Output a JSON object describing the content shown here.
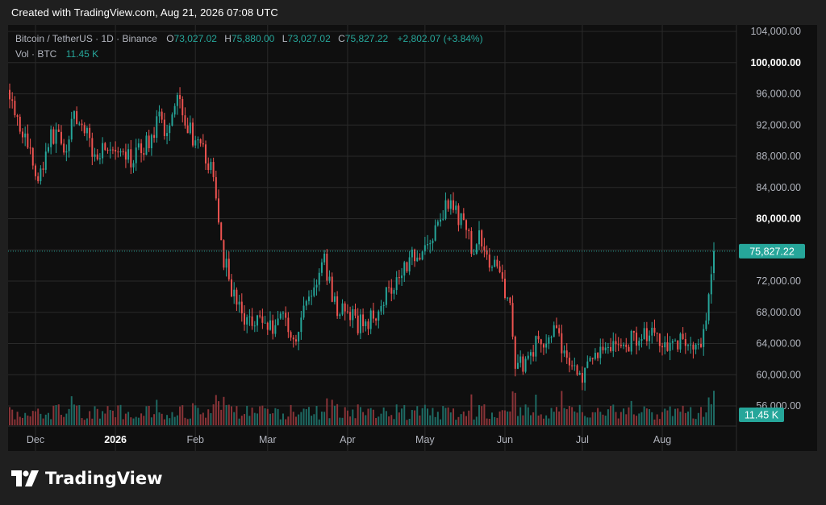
{
  "header": {
    "text": "Created with TradingView.com, Aug 21, 2026 07:08 UTC"
  },
  "legend": {
    "symbol": "Bitcoin / TetherUS · 1D · Binance",
    "o_label": "O",
    "o_value": "73,027.02",
    "h_label": "H",
    "h_value": "75,880.00",
    "l_label": "L",
    "l_value": "73,027.02",
    "c_label": "C",
    "c_value": "75,827.22",
    "change": "+2,802.07 (+3.84%)",
    "vol_label": "Vol · BTC",
    "vol_value": "11.45 K"
  },
  "footer": {
    "brand": "TradingView"
  },
  "colors": {
    "up": "#26a69a",
    "down": "#ef5350",
    "up_volume": "#1e6b64",
    "down_volume": "#8a3438",
    "grid": "#2a2a2a",
    "background": "#0f0f0f",
    "price_label_bg": "#26a69a"
  },
  "chart_data": {
    "type": "candlestick",
    "symbol": "Bitcoin / TetherUS",
    "interval": "1D",
    "exchange": "Binance",
    "ylim": [
      56000,
      104000
    ],
    "y_ticks": [
      "104,000.00",
      "100,000.00",
      "96,000.00",
      "92,000.00",
      "88,000.00",
      "84,000.00",
      "80,000.00",
      "76,000.00",
      "72,000.00",
      "68,000.00",
      "64,000.00",
      "60,000.00",
      "56,000.00"
    ],
    "y_tick_values": [
      104000,
      100000,
      96000,
      92000,
      88000,
      84000,
      80000,
      76000,
      72000,
      68000,
      64000,
      60000,
      56000
    ],
    "y_tick_emphasis": [
      false,
      true,
      false,
      false,
      false,
      false,
      true,
      false,
      false,
      false,
      false,
      false,
      false
    ],
    "x_tick_labels": [
      "Dec",
      "2026",
      "Feb",
      "Mar",
      "Apr",
      "May",
      "Jun",
      "Jul",
      "Aug"
    ],
    "x_tick_dates": [
      "2025-12-01",
      "2026-01-01",
      "2026-02-01",
      "2026-03-01",
      "2026-04-01",
      "2026-05-01",
      "2026-06-01",
      "2026-07-01",
      "2026-08-01"
    ],
    "x_tick_emphasis": [
      false,
      true,
      false,
      false,
      false,
      false,
      false,
      false,
      false
    ],
    "date_range": [
      "2025-11-21",
      "2026-08-21"
    ],
    "last_price": 75827.22,
    "last_price_label": "75,827.22",
    "volume_label": "11.45 K",
    "close_path": [
      [
        "2025-11-21",
        96500
      ],
      [
        "2025-11-25",
        92000
      ],
      [
        "2025-11-29",
        88500
      ],
      [
        "2025-12-02",
        84500
      ],
      [
        "2025-12-06",
        90000
      ],
      [
        "2025-12-10",
        91000
      ],
      [
        "2025-12-13",
        88500
      ],
      [
        "2025-12-16",
        93000
      ],
      [
        "2025-12-20",
        91500
      ],
      [
        "2025-12-24",
        88000
      ],
      [
        "2025-12-28",
        89500
      ],
      [
        "2026-01-02",
        87500
      ],
      [
        "2026-01-08",
        87800
      ],
      [
        "2026-01-14",
        90000
      ],
      [
        "2026-01-18",
        92500
      ],
      [
        "2026-01-21",
        91000
      ],
      [
        "2026-01-25",
        96500
      ],
      [
        "2026-01-29",
        92000
      ],
      [
        "2026-02-02",
        89000
      ],
      [
        "2026-02-05",
        88000
      ],
      [
        "2026-02-08",
        85000
      ],
      [
        "2026-02-12",
        75000
      ],
      [
        "2026-02-16",
        70000
      ],
      [
        "2026-02-20",
        67000
      ],
      [
        "2026-02-25",
        67500
      ],
      [
        "2026-03-02",
        66000
      ],
      [
        "2026-03-07",
        68000
      ],
      [
        "2026-03-12",
        64000
      ],
      [
        "2026-03-16",
        70000
      ],
      [
        "2026-03-19",
        71000
      ],
      [
        "2026-03-23",
        74500
      ],
      [
        "2026-03-27",
        69000
      ],
      [
        "2026-03-31",
        68000
      ],
      [
        "2026-04-05",
        66500
      ],
      [
        "2026-04-10",
        67000
      ],
      [
        "2026-04-15",
        70000
      ],
      [
        "2026-04-20",
        72500
      ],
      [
        "2026-04-25",
        75000
      ],
      [
        "2026-04-30",
        76000
      ],
      [
        "2026-05-04",
        77500
      ],
      [
        "2026-05-08",
        81000
      ],
      [
        "2026-05-12",
        81500
      ],
      [
        "2026-05-16",
        79000
      ],
      [
        "2026-05-19",
        76500
      ],
      [
        "2026-05-23",
        77500
      ],
      [
        "2026-05-27",
        74000
      ],
      [
        "2026-05-31",
        72500
      ],
      [
        "2026-06-03",
        68000
      ],
      [
        "2026-06-05",
        62000
      ],
      [
        "2026-06-08",
        61500
      ],
      [
        "2026-06-12",
        63500
      ],
      [
        "2026-06-16",
        64500
      ],
      [
        "2026-06-20",
        65500
      ],
      [
        "2026-06-23",
        63500
      ],
      [
        "2026-06-26",
        62000
      ],
      [
        "2026-06-30",
        59500
      ],
      [
        "2026-07-03",
        60500
      ],
      [
        "2026-07-07",
        63000
      ],
      [
        "2026-07-12",
        64000
      ],
      [
        "2026-07-17",
        63500
      ],
      [
        "2026-07-22",
        65000
      ],
      [
        "2026-07-27",
        65500
      ],
      [
        "2026-08-01",
        64500
      ],
      [
        "2026-08-05",
        64000
      ],
      [
        "2026-08-09",
        64500
      ],
      [
        "2026-08-13",
        63500
      ],
      [
        "2026-08-16",
        63300
      ],
      [
        "2026-08-18",
        66000
      ],
      [
        "2026-08-19",
        70000
      ],
      [
        "2026-08-20",
        73027
      ],
      [
        "2026-08-21",
        75827
      ]
    ]
  }
}
